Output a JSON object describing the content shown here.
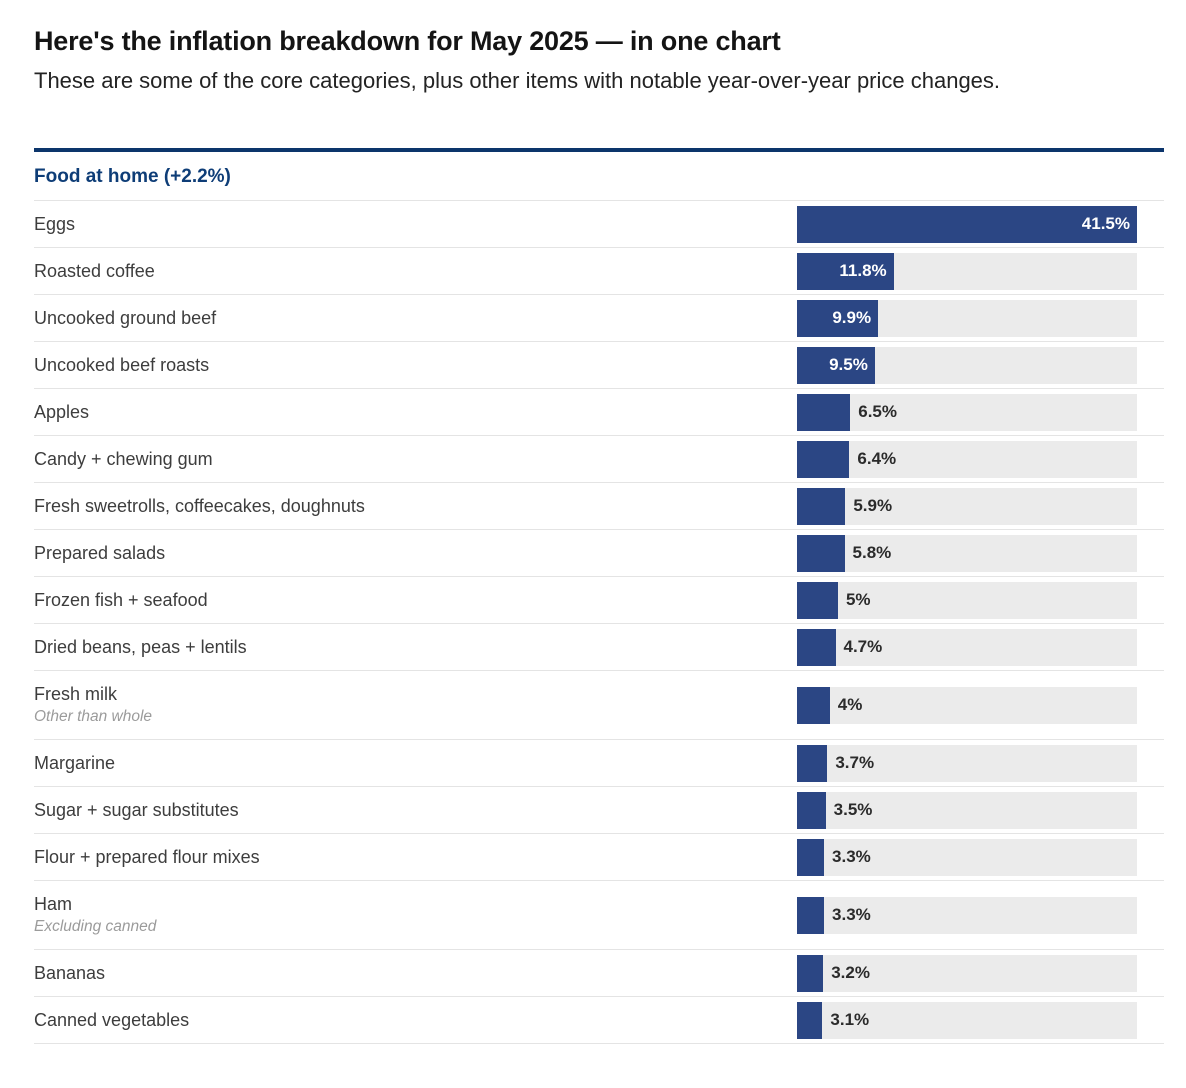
{
  "page": {
    "title": "Here's the inflation breakdown for May 2025 — in one chart",
    "subtitle": "These are some of the core categories, plus other items with notable year-over-year price changes."
  },
  "colors": {
    "bar_fill": "#2b4684",
    "bar_track": "#ebebeb",
    "section_header_text": "#0e3d77",
    "top_rule": "#0c356b",
    "bar_label_inside": "#ffffff",
    "bar_label_outside": "#2b2b2b"
  },
  "chart_data": {
    "type": "bar",
    "orientation": "horizontal",
    "title": "Here's the inflation breakdown for May 2025 — in one chart",
    "subtitle": "These are some of the core categories, plus other items with notable year-over-year price changes.",
    "section": "Food at home (+2.2%)",
    "scale_max": 41.5,
    "categories": [
      "Eggs",
      "Roasted coffee",
      "Uncooked ground beef",
      "Uncooked beef roasts",
      "Apples",
      "Candy + chewing gum",
      "Fresh sweetrolls, coffeecakes, doughnuts",
      "Prepared salads",
      "Frozen fish + seafood",
      "Dried beans, peas + lentils",
      "Fresh milk",
      "Margarine",
      "Sugar + sugar substitutes",
      "Flour + prepared flour mixes",
      "Ham",
      "Bananas",
      "Canned vegetables"
    ],
    "values": [
      41.5,
      11.8,
      9.9,
      9.5,
      6.5,
      6.4,
      5.9,
      5.8,
      5,
      4.7,
      4,
      3.7,
      3.5,
      3.3,
      3.3,
      3.2,
      3.1
    ],
    "rows": [
      {
        "label": "Eggs",
        "sublabel": "",
        "value": 41.5,
        "display": "41.5%"
      },
      {
        "label": "Roasted coffee",
        "sublabel": "",
        "value": 11.8,
        "display": "11.8%"
      },
      {
        "label": "Uncooked ground beef",
        "sublabel": "",
        "value": 9.9,
        "display": "9.9%"
      },
      {
        "label": "Uncooked beef roasts",
        "sublabel": "",
        "value": 9.5,
        "display": "9.5%"
      },
      {
        "label": "Apples",
        "sublabel": "",
        "value": 6.5,
        "display": "6.5%"
      },
      {
        "label": "Candy + chewing gum",
        "sublabel": "",
        "value": 6.4,
        "display": "6.4%"
      },
      {
        "label": "Fresh sweetrolls, coffeecakes, doughnuts",
        "sublabel": "",
        "value": 5.9,
        "display": "5.9%"
      },
      {
        "label": "Prepared salads",
        "sublabel": "",
        "value": 5.8,
        "display": "5.8%"
      },
      {
        "label": "Frozen fish + seafood",
        "sublabel": "",
        "value": 5,
        "display": "5%"
      },
      {
        "label": "Dried beans, peas + lentils",
        "sublabel": "",
        "value": 4.7,
        "display": "4.7%"
      },
      {
        "label": "Fresh milk",
        "sublabel": "Other than whole",
        "value": 4,
        "display": "4%"
      },
      {
        "label": "Margarine",
        "sublabel": "",
        "value": 3.7,
        "display": "3.7%"
      },
      {
        "label": "Sugar + sugar substitutes",
        "sublabel": "",
        "value": 3.5,
        "display": "3.5%"
      },
      {
        "label": "Flour + prepared flour mixes",
        "sublabel": "",
        "value": 3.3,
        "display": "3.3%"
      },
      {
        "label": "Ham",
        "sublabel": "Excluding canned",
        "value": 3.3,
        "display": "3.3%"
      },
      {
        "label": "Bananas",
        "sublabel": "",
        "value": 3.2,
        "display": "3.2%"
      },
      {
        "label": "Canned vegetables",
        "sublabel": "",
        "value": 3.1,
        "display": "3.1%"
      }
    ]
  }
}
